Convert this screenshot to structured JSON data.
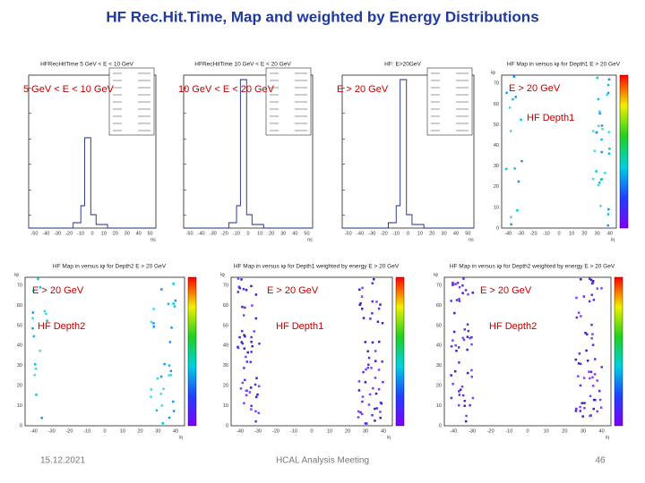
{
  "title": "HF Rec.Hit.Time, Map and weighted by Energy Distributions",
  "axes": {
    "time_xticks": [
      "-50",
      "-40",
      "-30",
      "-20",
      "-10",
      "0",
      "10",
      "20",
      "30",
      "40",
      "50"
    ],
    "time_xlabel": "ns",
    "map_xticks": [
      "-40",
      "-30",
      "-20",
      "-10",
      "0",
      "10",
      "20",
      "30",
      "40"
    ],
    "map_yticks": [
      "0",
      "10",
      "20",
      "30",
      "40",
      "50",
      "60",
      "70"
    ],
    "map_xlabel": "iη",
    "map_ylabel": "iφ"
  },
  "panels": [
    {
      "kind": "hist",
      "title": "HFRecHitTime 5 GeV < E < 10 GeV",
      "label": "5 GeV < E < 10 GeV"
    },
    {
      "kind": "hist",
      "title": "HFRecHitTime 10 GeV < E < 20 GeV",
      "label": "10 GeV < E < 20 GeV"
    },
    {
      "kind": "hist",
      "title": "HF: E>20GeV",
      "label": "E > 20 GeV"
    },
    {
      "kind": "map",
      "title": "HF Map in versus iφ for Depth1 E > 20 GeV",
      "label": "E > 20 GeV",
      "sublabel": "HF Depth1"
    },
    {
      "kind": "map",
      "title": "HF Map in versus iφ for Depth2 E > 20 GeV",
      "label": "E > 20 GeV",
      "sublabel": "HF Depth2"
    },
    {
      "kind": "map",
      "title": "HF Map in versus iφ for Depth1 weighted by energy E > 20 GeV",
      "label": "E > 20 GeV",
      "sublabel": "HF Depth1"
    },
    {
      "kind": "map",
      "title": "HF Map in versus iφ for Depth2 weighted by energy E > 20 GeV",
      "label": "E > 20 GeV",
      "sublabel": "HF Depth2"
    }
  ],
  "footer": {
    "date": "15.12.2021",
    "meeting": "HCAL Analysis Meeting",
    "page": "46"
  }
}
